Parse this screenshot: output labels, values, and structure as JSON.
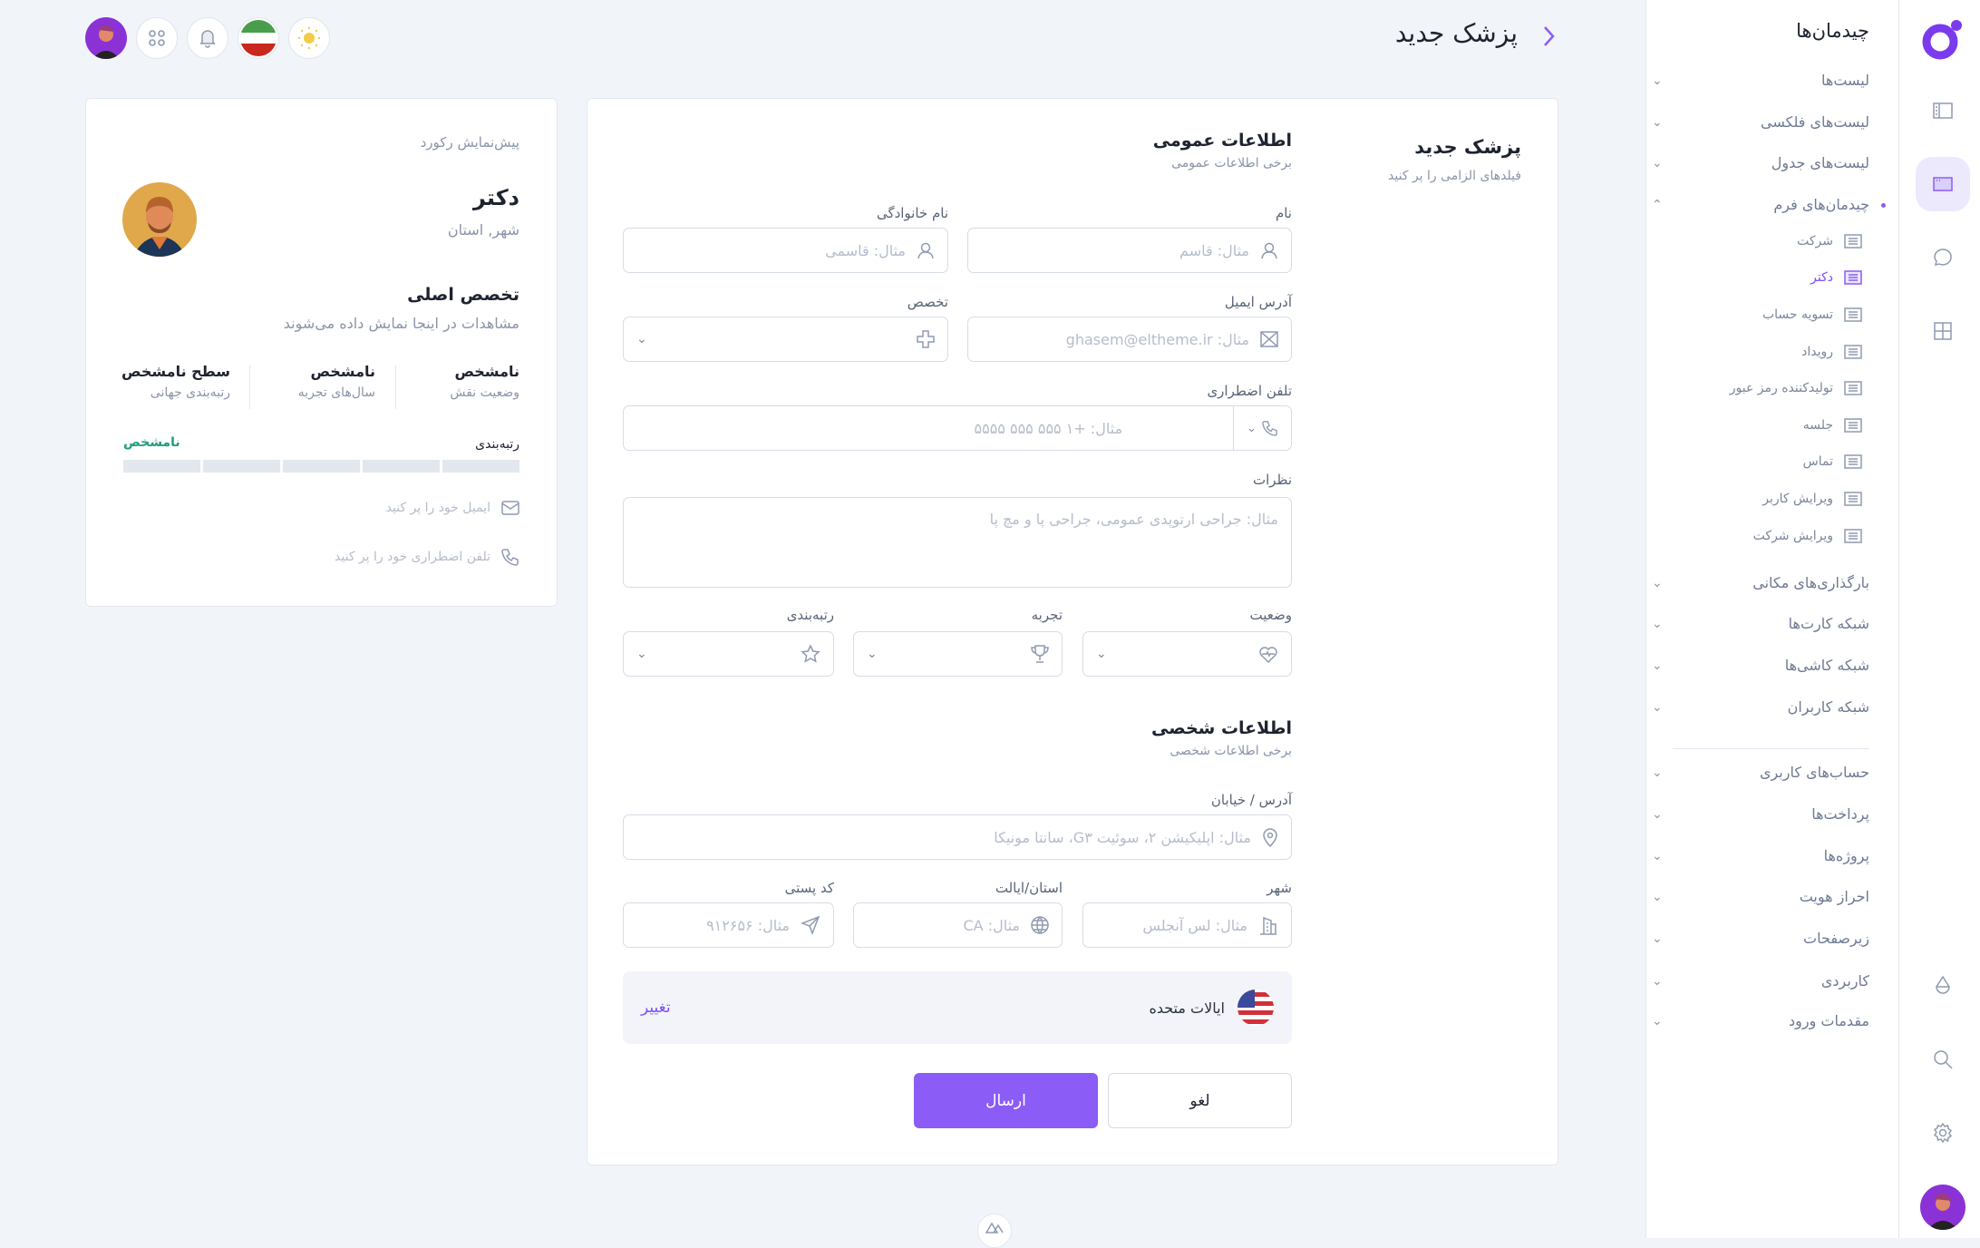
{
  "header": {
    "title": "پزشک جدید",
    "back_icon": "chevron-right-icon"
  },
  "topbar": {
    "icons": [
      "theme-sun-icon",
      "language-flag-iran",
      "notifications-bell-icon",
      "apps-grid-icon",
      "user-avatar"
    ]
  },
  "rail": {
    "icons": [
      "logo",
      "layout-sidebar-icon",
      "form-layout-icon",
      "chat-icon",
      "grid-icon",
      "drop-icon",
      "search-icon",
      "settings-gear-icon",
      "user-avatar"
    ]
  },
  "sidebar": {
    "title": "چیدمان‌ها",
    "groups_top": [
      "لیست‌ها",
      "لیست‌های فلکسی",
      "لیست‌های جدول"
    ],
    "active_group": "چیدمان‌های فرم",
    "sub_items": [
      "شرکت",
      "دکتر",
      "تسویه حساب",
      "رویداد",
      "تولیدکننده رمز عبور",
      "جلسه",
      "تماس",
      "ویرایش کاربر",
      "ویرایش شرکت"
    ],
    "active_sub": "دکتر",
    "groups_mid": [
      "بارگذاری‌های مکانی",
      "شبکه کارت‌ها",
      "شبکه کاشی‌ها",
      "شبکه کاربران"
    ],
    "groups_bottom": [
      "حساب‌های کاربری",
      "پرداخت‌ها",
      "پروژه‌ها",
      "احراز هویت",
      "زیرصفحات",
      "کاربردی",
      "مقدمات ورود"
    ]
  },
  "form": {
    "title": "پزشک جدید",
    "subtitle": "فیلدهای الزامی را پر کنید",
    "general": {
      "title": "اطلاعات عمومی",
      "subtitle": "برخی اطلاعات عمومی"
    },
    "first_name": {
      "label": "نام",
      "placeholder": "مثال: قاسم"
    },
    "last_name": {
      "label": "نام خانوادگی",
      "placeholder": "مثال: قاسمی"
    },
    "email": {
      "label": "آدرس ایمیل",
      "placeholder": "مثال: ghasem@eltheme.ir"
    },
    "specialty": {
      "label": "تخصص",
      "value": ""
    },
    "phone": {
      "label": "تلفن اضطراری",
      "placeholder": "مثال: +۱ ۵۵۵ ۵۵۵ ۵۵۵۵"
    },
    "comments": {
      "label": "نظرات",
      "placeholder": "مثال: جراحی ارتوپدی عمومی، جراحی پا و مچ پا"
    },
    "status": {
      "label": "وضعیت"
    },
    "experience": {
      "label": "تجربه"
    },
    "rating": {
      "label": "رتبه‌بندی"
    },
    "personal": {
      "title": "اطلاعات شخصی",
      "subtitle": "برخی اطلاعات شخصی"
    },
    "address": {
      "label": "آدرس / خیابان",
      "placeholder": "مثال: اپلیکیشن ۲، سوئیت G۳، سانتا مونیکا"
    },
    "city": {
      "label": "شهر",
      "placeholder": "مثال: لس آنجلس"
    },
    "state": {
      "label": "استان/ایالت",
      "placeholder": "مثال: CA"
    },
    "zip": {
      "label": "کد پستی",
      "placeholder": "مثال: ۹۱۲۶۵۶"
    },
    "country": {
      "name": "ایالات متحده",
      "change": "تغییر"
    },
    "cancel": "لغو",
    "submit": "ارسال"
  },
  "preview": {
    "heading": "پیش‌نمایش رکورد",
    "name": "دکتر",
    "location": "شهر, استان",
    "specialty_title": "تخصص اصلی",
    "specialty_desc": "مشاهدات در اینجا نمایش داده می‌شوند",
    "stats": [
      {
        "value": "نامشخص",
        "label": "وضعیت نقش"
      },
      {
        "value": "نامشخص",
        "label": "سال‌های تجربه"
      },
      {
        "value": "سطح نامشخص",
        "label": "رتبه‌بندی جهانی"
      }
    ],
    "rating_label": "رتبه‌بندی",
    "rating_value": "نامشخص",
    "rating_filled": 0,
    "rating_segments": 5,
    "email_hint": "ایمیل خود را پر کنید",
    "phone_hint": "تلفن اضطراری خود را پر کنید"
  },
  "colors": {
    "accent": "#8b5cf6",
    "success": "#1f9d7a",
    "background": "#f1f4f9"
  }
}
